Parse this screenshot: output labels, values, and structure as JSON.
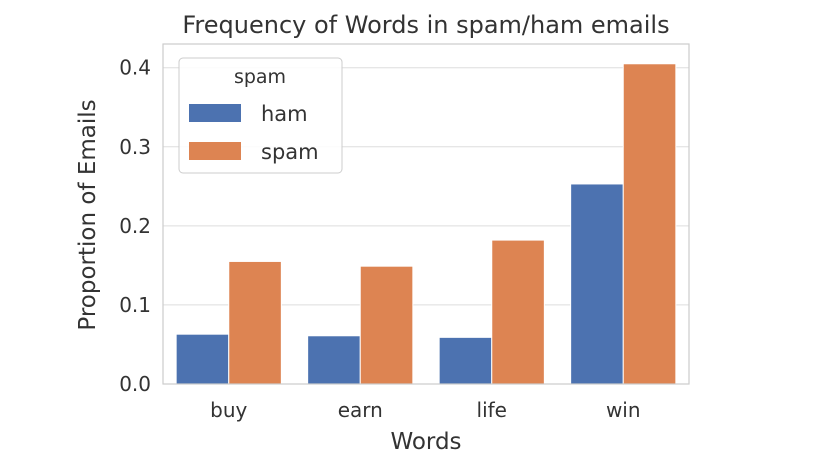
{
  "chart_data": {
    "type": "bar",
    "title": "Frequency of Words in spam/ham emails",
    "xlabel": "Words",
    "ylabel": "Proportion of Emails",
    "categories": [
      "buy",
      "earn",
      "life",
      "win"
    ],
    "series": [
      {
        "name": "ham",
        "color": "#4c72b0",
        "values": [
          0.063,
          0.061,
          0.059,
          0.253
        ]
      },
      {
        "name": "spam",
        "color": "#dd8452",
        "values": [
          0.155,
          0.149,
          0.182,
          0.405
        ]
      }
    ],
    "ylim": [
      0,
      0.43
    ],
    "yticks": [
      0.0,
      0.1,
      0.2,
      0.3,
      0.4
    ],
    "ytick_labels": [
      "0.0",
      "0.1",
      "0.2",
      "0.3",
      "0.4"
    ],
    "grid": true,
    "legend": {
      "title": "spam",
      "placement": "top-left"
    }
  }
}
